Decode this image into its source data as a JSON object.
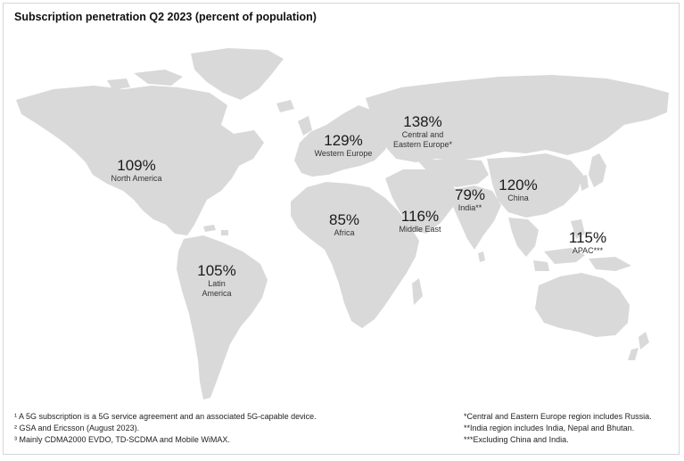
{
  "title": "Subscription penetration Q2 2023 (percent of population)",
  "regions": [
    {
      "id": "north-america",
      "value": "109%",
      "name": [
        "North America"
      ]
    },
    {
      "id": "latin-america",
      "value": "105%",
      "name": [
        "Latin",
        "America"
      ]
    },
    {
      "id": "western-europe",
      "value": "129%",
      "name": [
        "Western Europe"
      ]
    },
    {
      "id": "central-eastern-europe",
      "value": "138%",
      "name": [
        "Central and",
        "Eastern Europe*"
      ]
    },
    {
      "id": "africa",
      "value": "85%",
      "name": [
        "Africa"
      ]
    },
    {
      "id": "middle-east",
      "value": "116%",
      "name": [
        "Middle East"
      ]
    },
    {
      "id": "india",
      "value": "79%",
      "name": [
        "India**"
      ]
    },
    {
      "id": "china",
      "value": "120%",
      "name": [
        "China"
      ]
    },
    {
      "id": "apac",
      "value": "115%",
      "name": [
        "APAC***"
      ]
    }
  ],
  "footnotes_left": [
    "¹ A 5G subscription is a 5G service agreement and an associated 5G-capable device.",
    "² GSA and Ericsson (August 2023).",
    "³ Mainly CDMA2000 EVDO, TD-SCDMA and Mobile WiMAX."
  ],
  "footnotes_right": [
    "*Central and Eastern Europe region includes Russia.",
    "**India region includes India, Nepal and Bhutan.",
    "***Excluding China and India."
  ],
  "colors": {
    "land": "#d9d9d9",
    "text": "#1a1a1a",
    "border": "#d6d6d6"
  }
}
